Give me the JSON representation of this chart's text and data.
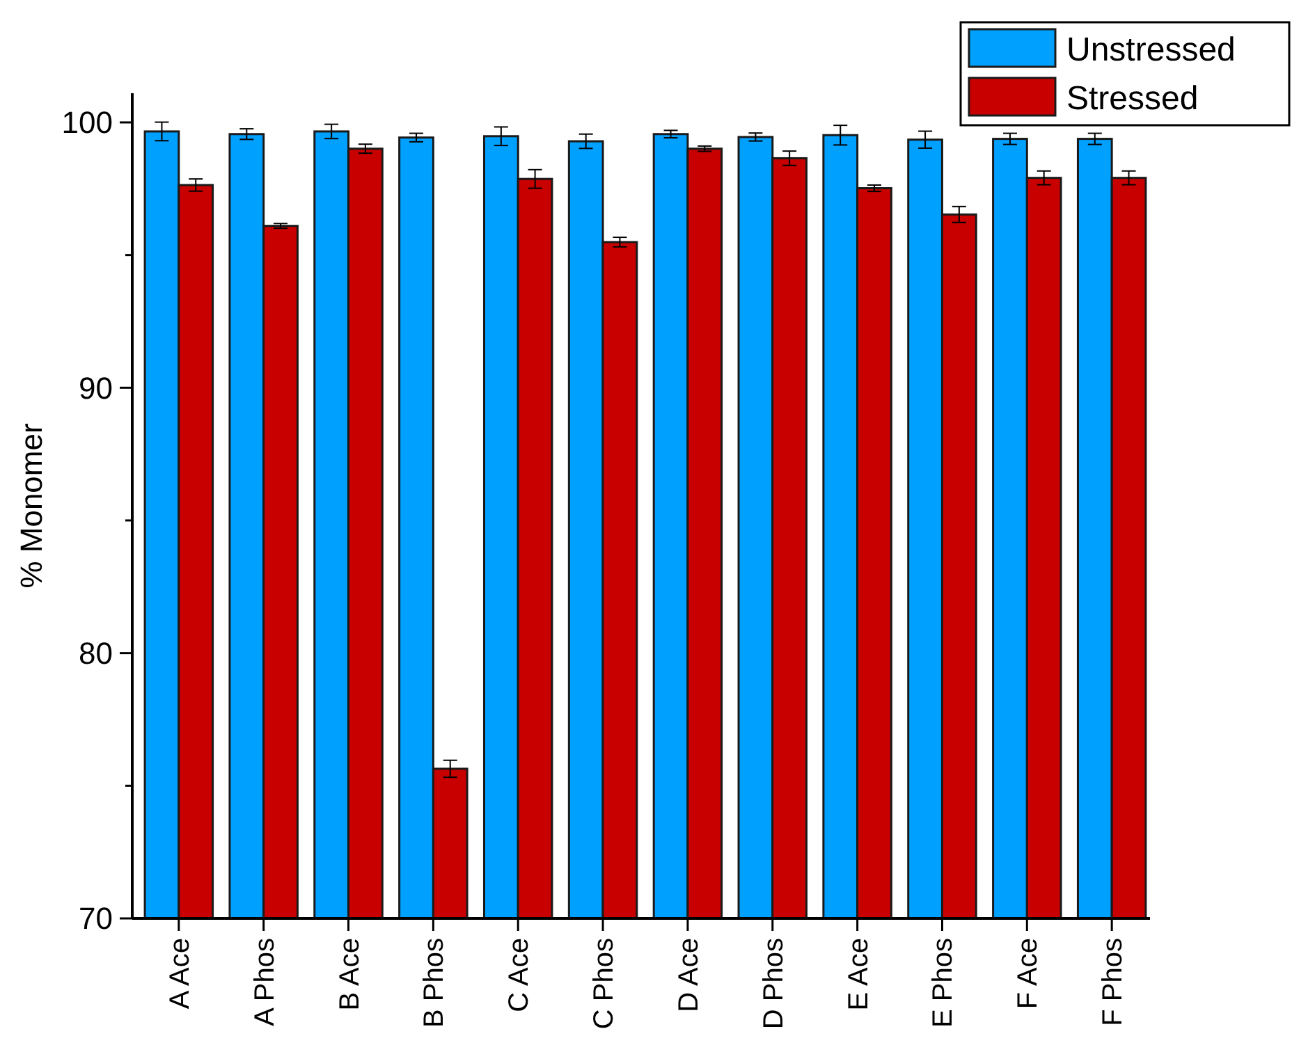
{
  "chart_data": {
    "type": "bar",
    "ylabel": "% Monomer",
    "categories": [
      "A Ace",
      "A Phos",
      "B Ace",
      "B Phos",
      "C Ace",
      "C Phos",
      "D Ace",
      "D Phos",
      "E Ace",
      "E Phos",
      "F Ace",
      "F Phos"
    ],
    "series": [
      {
        "name": "Unstressed",
        "color": "#00a0ff",
        "values": [
          99.66,
          99.56,
          99.66,
          99.43,
          99.48,
          99.29,
          99.56,
          99.45,
          99.52,
          99.35,
          99.38,
          99.38
        ],
        "errors": [
          0.35,
          0.2,
          0.27,
          0.16,
          0.35,
          0.27,
          0.14,
          0.15,
          0.37,
          0.32,
          0.21,
          0.21
        ]
      },
      {
        "name": "Stressed",
        "color": "#c80000",
        "values": [
          97.64,
          96.1,
          99.01,
          75.64,
          97.87,
          95.49,
          99.01,
          98.65,
          97.52,
          96.53,
          97.91,
          97.91
        ],
        "errors": [
          0.23,
          0.09,
          0.17,
          0.32,
          0.35,
          0.18,
          0.1,
          0.27,
          0.12,
          0.3,
          0.26,
          0.26
        ]
      }
    ],
    "ylim": [
      70,
      101.1
    ],
    "yticks": [
      70,
      {
        "value": 75,
        "label": null
      },
      80,
      {
        "value": 85,
        "label": null
      },
      90,
      {
        "value": 95,
        "label": null
      },
      100
    ],
    "grid": false,
    "legend": "top right"
  }
}
